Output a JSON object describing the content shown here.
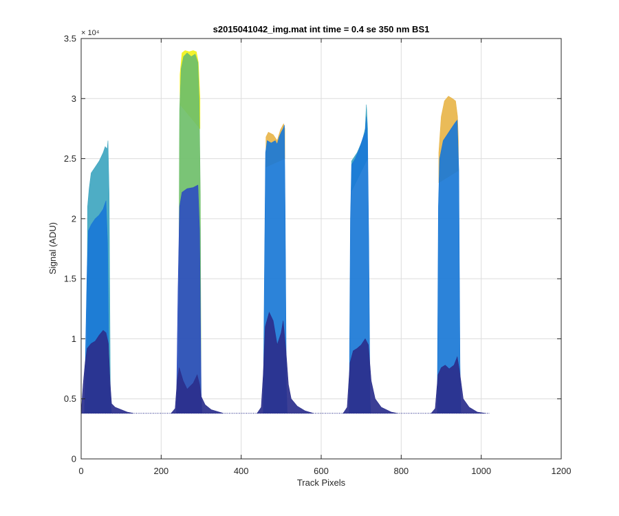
{
  "chart_data": {
    "type": "area",
    "title": "s2015041042_img.mat int time = 0.4 se  350 nm BS1",
    "xlabel": "Track Pixels",
    "ylabel": "Signal (ADU)",
    "xlim": [
      0,
      1200
    ],
    "ylim": [
      0,
      35000
    ],
    "x_ticks": [
      0,
      200,
      400,
      600,
      800,
      1000,
      1200
    ],
    "x_tick_labels": [
      "0",
      "200",
      "400",
      "600",
      "800",
      "1000",
      "1200"
    ],
    "y_ticks": [
      0,
      5000,
      10000,
      15000,
      20000,
      25000,
      30000,
      35000
    ],
    "y_tick_labels": [
      "0",
      "0.5",
      "1",
      "1.5",
      "2",
      "2.5",
      "3",
      "3.5"
    ],
    "y_exponent_label": "× 10⁴",
    "grid": true,
    "baseline": 3800,
    "baseline_range": [
      0,
      1020
    ],
    "colors": {
      "dark": "#2b2f8c",
      "mid_dark": "#2f4fbf",
      "mid": "#1a78d6",
      "light": "#3fa6c0",
      "green": "#6fbf6a",
      "orange": "#e8b54a",
      "yellow": "#f2f21a"
    },
    "series": [
      {
        "layers": [
          {
            "color": "dark",
            "points": [
              [
                0,
                3800
              ],
              [
                5,
                6200
              ],
              [
                10,
                8000
              ],
              [
                15,
                9200
              ],
              [
                25,
                9600
              ],
              [
                35,
                9800
              ],
              [
                45,
                10300
              ],
              [
                55,
                10700
              ],
              [
                62,
                10500
              ],
              [
                68,
                9600
              ],
              [
                72,
                6500
              ],
              [
                76,
                4600
              ],
              [
                85,
                4300
              ],
              [
                100,
                4100
              ],
              [
                115,
                3900
              ],
              [
                130,
                3800
              ]
            ]
          },
          {
            "color": "mid",
            "points": [
              [
                8,
                3800
              ],
              [
                12,
                11000
              ],
              [
                15,
                16000
              ],
              [
                18,
                19000
              ],
              [
                25,
                19500
              ],
              [
                35,
                20000
              ],
              [
                45,
                20300
              ],
              [
                55,
                20800
              ],
              [
                62,
                21500
              ],
              [
                66,
                18000
              ],
              [
                70,
                6000
              ],
              [
                74,
                4500
              ],
              [
                76,
                3800
              ]
            ]
          },
          {
            "color": "light",
            "points": [
              [
                14,
                3800
              ],
              [
                16,
                21000
              ],
              [
                20,
                22500
              ],
              [
                25,
                23800
              ],
              [
                35,
                24300
              ],
              [
                45,
                24800
              ],
              [
                55,
                25500
              ],
              [
                60,
                26000
              ],
              [
                65,
                25800
              ],
              [
                67,
                26500
              ],
              [
                70,
                22000
              ],
              [
                73,
                5000
              ],
              [
                75,
                3800
              ]
            ]
          }
        ]
      },
      {
        "layers": [
          {
            "color": "dark",
            "points": [
              [
                225,
                3800
              ],
              [
                235,
                4200
              ],
              [
                240,
                6500
              ],
              [
                245,
                7600
              ],
              [
                255,
                6500
              ],
              [
                265,
                5800
              ],
              [
                280,
                6300
              ],
              [
                290,
                7000
              ],
              [
                296,
                6200
              ],
              [
                300,
                5200
              ],
              [
                310,
                4500
              ],
              [
                325,
                4100
              ],
              [
                345,
                3900
              ],
              [
                355,
                3800
              ]
            ]
          },
          {
            "color": "mid_dark",
            "points": [
              [
                238,
                3800
              ],
              [
                242,
                14000
              ],
              [
                246,
                21000
              ],
              [
                252,
                22200
              ],
              [
                265,
                22500
              ],
              [
                280,
                22600
              ],
              [
                292,
                22800
              ],
              [
                296,
                19000
              ],
              [
                300,
                5500
              ],
              [
                302,
                3800
              ]
            ]
          },
          {
            "color": "green",
            "points": [
              [
                243,
                3800
              ],
              [
                246,
                29000
              ],
              [
                250,
                32500
              ],
              [
                256,
                33500
              ],
              [
                265,
                33800
              ],
              [
                275,
                33500
              ],
              [
                285,
                33700
              ],
              [
                292,
                33000
              ],
              [
                295,
                30000
              ],
              [
                298,
                22000
              ],
              [
                300,
                3800
              ]
            ]
          },
          {
            "color": "yellow",
            "points": [
              [
                247,
                32000
              ],
              [
                252,
                33800
              ],
              [
                260,
                34000
              ],
              [
                270,
                33900
              ],
              [
                280,
                34000
              ],
              [
                288,
                33900
              ],
              [
                293,
                33000
              ],
              [
                297,
                30000
              ]
            ]
          }
        ]
      },
      {
        "layers": [
          {
            "color": "dark",
            "points": [
              [
                440,
                3800
              ],
              [
                450,
                4300
              ],
              [
                455,
                7000
              ],
              [
                460,
                11000
              ],
              [
                470,
                12200
              ],
              [
                480,
                11500
              ],
              [
                490,
                9500
              ],
              [
                500,
                10500
              ],
              [
                505,
                11500
              ],
              [
                512,
                9000
              ],
              [
                518,
                6200
              ],
              [
                525,
                5000
              ],
              [
                540,
                4400
              ],
              [
                560,
                4000
              ],
              [
                580,
                3800
              ]
            ]
          },
          {
            "color": "mid",
            "points": [
              [
                455,
                3800
              ],
              [
                458,
                15000
              ],
              [
                461,
                25500
              ],
              [
                465,
                26500
              ],
              [
                475,
                26300
              ],
              [
                485,
                26500
              ],
              [
                490,
                26200
              ],
              [
                495,
                26800
              ],
              [
                500,
                27200
              ],
              [
                505,
                27500
              ],
              [
                508,
                27800
              ],
              [
                510,
                21000
              ],
              [
                513,
                6000
              ],
              [
                515,
                3800
              ]
            ]
          },
          {
            "color": "orange",
            "points": [
              [
                462,
                26800
              ],
              [
                468,
                27200
              ],
              [
                480,
                27000
              ],
              [
                490,
                26500
              ],
              [
                498,
                27400
              ],
              [
                506,
                27900
              ],
              [
                509,
                27500
              ]
            ]
          }
        ]
      },
      {
        "layers": [
          {
            "color": "dark",
            "points": [
              [
                655,
                3800
              ],
              [
                665,
                4300
              ],
              [
                672,
                8000
              ],
              [
                680,
                9000
              ],
              [
                690,
                9200
              ],
              [
                700,
                9500
              ],
              [
                710,
                10000
              ],
              [
                718,
                9500
              ],
              [
                725,
                6500
              ],
              [
                735,
                5000
              ],
              [
                750,
                4300
              ],
              [
                775,
                3900
              ],
              [
                790,
                3800
              ]
            ]
          },
          {
            "color": "mid",
            "points": [
              [
                670,
                3800
              ],
              [
                673,
                20000
              ],
              [
                676,
                24500
              ],
              [
                685,
                25000
              ],
              [
                695,
                25800
              ],
              [
                705,
                26800
              ],
              [
                710,
                27200
              ],
              [
                713,
                28500
              ],
              [
                716,
                26500
              ],
              [
                719,
                18000
              ],
              [
                722,
                5000
              ],
              [
                724,
                3800
              ]
            ]
          },
          {
            "color": "light",
            "points": [
              [
                676,
                24800
              ],
              [
                690,
                25500
              ],
              [
                703,
                26500
              ],
              [
                710,
                27500
              ],
              [
                713,
                29500
              ],
              [
                716,
                27500
              ]
            ]
          }
        ]
      },
      {
        "layers": [
          {
            "color": "dark",
            "points": [
              [
                875,
                3800
              ],
              [
                885,
                4200
              ],
              [
                892,
                7000
              ],
              [
                900,
                7600
              ],
              [
                910,
                7800
              ],
              [
                920,
                7500
              ],
              [
                932,
                7800
              ],
              [
                940,
                8500
              ],
              [
                945,
                7500
              ],
              [
                955,
                5000
              ],
              [
                970,
                4300
              ],
              [
                990,
                3900
              ],
              [
                1010,
                3800
              ]
            ]
          },
          {
            "color": "mid",
            "points": [
              [
                890,
                3800
              ],
              [
                893,
                21000
              ],
              [
                896,
                25000
              ],
              [
                905,
                26500
              ],
              [
                915,
                27000
              ],
              [
                925,
                27500
              ],
              [
                935,
                28000
              ],
              [
                940,
                28200
              ],
              [
                944,
                24000
              ],
              [
                947,
                8000
              ],
              [
                949,
                3800
              ]
            ]
          },
          {
            "color": "orange",
            "points": [
              [
                894,
                25500
              ],
              [
                900,
                28500
              ],
              [
                908,
                29800
              ],
              [
                918,
                30200
              ],
              [
                928,
                30000
              ],
              [
                936,
                29800
              ],
              [
                941,
                28500
              ],
              [
                943,
                26500
              ]
            ]
          }
        ]
      }
    ]
  }
}
